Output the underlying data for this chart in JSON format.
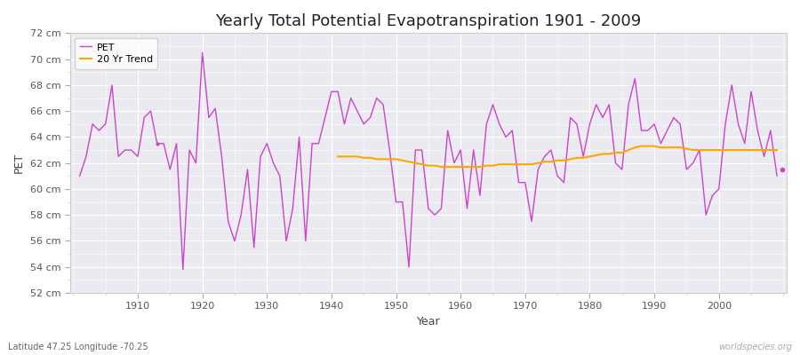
{
  "title": "Yearly Total Potential Evapotranspiration 1901 - 2009",
  "xlabel": "Year",
  "ylabel": "PET",
  "subtitle": "Latitude 47.25 Longitude -70.25",
  "watermark": "worldspecies.org",
  "pet_color": "#cc44cc",
  "trend_color": "#ffa500",
  "bg_color": "#f0f0f5",
  "plot_bg_color": "#eaeaf0",
  "grid_color": "#ffffff",
  "outer_bg": "#ffffff",
  "ylim": [
    52,
    72
  ],
  "yticks": [
    52,
    54,
    56,
    58,
    60,
    62,
    64,
    66,
    68,
    70,
    72
  ],
  "xlim": [
    1899.5,
    2010.5
  ],
  "xticks": [
    1910,
    1920,
    1930,
    1940,
    1950,
    1960,
    1970,
    1980,
    1990,
    2000
  ],
  "years": [
    1901,
    1902,
    1903,
    1904,
    1905,
    1906,
    1907,
    1908,
    1909,
    1910,
    1911,
    1912,
    1913,
    1914,
    1915,
    1916,
    1917,
    1918,
    1919,
    1920,
    1921,
    1922,
    1923,
    1924,
    1925,
    1926,
    1927,
    1928,
    1929,
    1930,
    1931,
    1932,
    1933,
    1934,
    1935,
    1936,
    1937,
    1938,
    1939,
    1940,
    1941,
    1942,
    1943,
    1944,
    1945,
    1946,
    1947,
    1948,
    1949,
    1950,
    1951,
    1952,
    1953,
    1954,
    1955,
    1956,
    1957,
    1958,
    1959,
    1960,
    1961,
    1962,
    1963,
    1964,
    1965,
    1966,
    1967,
    1968,
    1969,
    1970,
    1971,
    1972,
    1973,
    1974,
    1975,
    1976,
    1977,
    1978,
    1979,
    1980,
    1981,
    1982,
    1983,
    1984,
    1985,
    1986,
    1987,
    1988,
    1989,
    1990,
    1991,
    1992,
    1993,
    1994,
    1995,
    1996,
    1997,
    1998,
    1999,
    2000,
    2001,
    2002,
    2003,
    2004,
    2005,
    2006,
    2007,
    2008,
    2009
  ],
  "pet": [
    61.0,
    62.5,
    65.0,
    64.5,
    65.0,
    68.0,
    62.5,
    63.0,
    63.0,
    62.5,
    65.5,
    66.0,
    63.5,
    63.5,
    61.5,
    63.5,
    53.8,
    63.0,
    62.0,
    70.5,
    65.5,
    66.2,
    62.5,
    57.5,
    56.0,
    58.0,
    61.5,
    55.5,
    62.5,
    63.5,
    62.0,
    61.0,
    56.0,
    58.5,
    64.0,
    56.0,
    63.5,
    63.5,
    65.5,
    67.5,
    67.5,
    65.0,
    67.0,
    66.0,
    65.0,
    65.5,
    67.0,
    66.5,
    63.0,
    59.0,
    59.0,
    54.0,
    63.0,
    63.0,
    58.5,
    58.0,
    58.5,
    64.5,
    62.0,
    63.0,
    58.5,
    63.0,
    59.5,
    65.0,
    66.5,
    65.0,
    64.0,
    64.5,
    60.5,
    60.5,
    57.5,
    61.5,
    62.5,
    63.0,
    61.0,
    60.5,
    65.5,
    65.0,
    62.5,
    65.0,
    66.5,
    65.5,
    66.5,
    62.0,
    61.5,
    66.5,
    68.5,
    64.5,
    64.5,
    65.0,
    63.5,
    64.5,
    65.5,
    65.0,
    61.5,
    62.0,
    63.0,
    58.0,
    59.5,
    60.0,
    65.0,
    68.0,
    65.0,
    63.5,
    67.5,
    64.5,
    62.5,
    64.5,
    61.0
  ],
  "trend_years": [
    1941,
    1942,
    1943,
    1944,
    1945,
    1946,
    1947,
    1948,
    1949,
    1950,
    1951,
    1952,
    1953,
    1954,
    1955,
    1956,
    1957,
    1958,
    1959,
    1960,
    1961,
    1962,
    1963,
    1964,
    1965,
    1966,
    1967,
    1968,
    1969,
    1970,
    1971,
    1972,
    1973,
    1974,
    1975,
    1976,
    1977,
    1978,
    1979,
    1980,
    1981,
    1982,
    1983,
    1984,
    1985,
    1986,
    1987,
    1988,
    1989,
    1990,
    1991,
    1992,
    1993,
    1994,
    1995,
    1996,
    1997,
    1998,
    1999,
    2000,
    2001,
    2002,
    2003,
    2004,
    2005,
    2006,
    2007,
    2008,
    2009
  ],
  "trend": [
    62.5,
    62.5,
    62.5,
    62.5,
    62.4,
    62.4,
    62.3,
    62.3,
    62.3,
    62.3,
    62.2,
    62.1,
    62.0,
    61.9,
    61.8,
    61.8,
    61.7,
    61.7,
    61.7,
    61.7,
    61.7,
    61.7,
    61.7,
    61.8,
    61.8,
    61.9,
    61.9,
    61.9,
    61.9,
    61.9,
    61.9,
    62.0,
    62.1,
    62.1,
    62.2,
    62.2,
    62.3,
    62.4,
    62.4,
    62.5,
    62.6,
    62.7,
    62.7,
    62.8,
    62.8,
    63.0,
    63.2,
    63.3,
    63.3,
    63.3,
    63.2,
    63.2,
    63.2,
    63.2,
    63.1,
    63.0,
    63.0,
    63.0,
    63.0,
    63.0,
    63.0,
    63.0,
    63.0,
    63.0,
    63.0,
    63.0,
    63.0,
    63.0,
    63.0
  ],
  "lone_dot_year": 2009.8,
  "lone_dot_value": 61.5,
  "dot2_year": 1913,
  "dot2_value": 63.5,
  "title_fontsize": 13,
  "tick_fontsize": 8,
  "label_fontsize": 9,
  "legend_fontsize": 8,
  "subtitle_fontsize": 7,
  "watermark_fontsize": 7
}
